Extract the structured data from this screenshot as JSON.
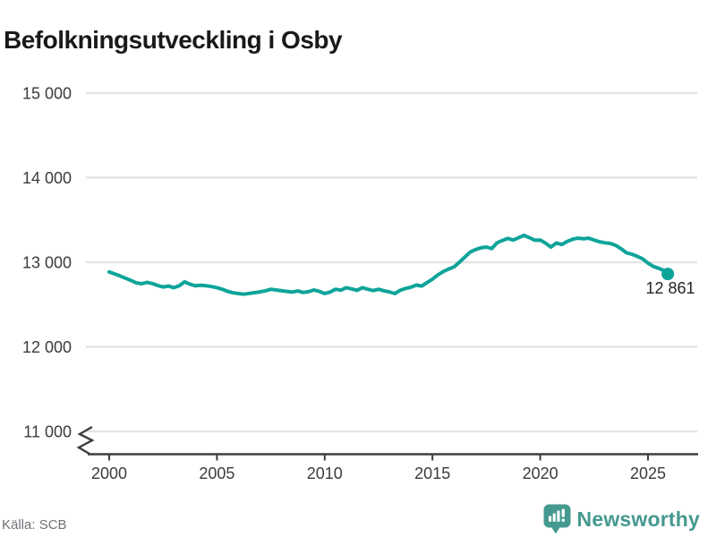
{
  "title": "Befolkningsutveckling i Osby",
  "annotation": {
    "last_value_label": "12 861"
  },
  "footer": {
    "source": "Källa: SCB",
    "brand": "Newsworthy"
  },
  "colors": {
    "line": "#0ea49a",
    "grid": "#e4e4e4",
    "axis": "#3e3e3e",
    "tick_text": "#3b3b3b",
    "title_text": "#191919",
    "source_text": "#6e7176",
    "brand_teal": "#45998f"
  },
  "chart_data": {
    "type": "line",
    "title": "Befolkningsutveckling i Osby",
    "source": "Källa: SCB",
    "grid": "horizontal",
    "legend": "none",
    "ylim": [
      11000,
      15000
    ],
    "y_axis_break": true,
    "yticks": [
      {
        "value": 15000,
        "label": "15 000"
      },
      {
        "value": 14000,
        "label": "14 000"
      },
      {
        "value": 13000,
        "label": "13 000"
      },
      {
        "value": 12000,
        "label": "12 000"
      },
      {
        "value": 11000,
        "label": "11 000"
      }
    ],
    "xticks": [
      {
        "value": 2000,
        "label": "2000"
      },
      {
        "value": 2005,
        "label": "2005"
      },
      {
        "value": 2010,
        "label": "2010"
      },
      {
        "value": 2015,
        "label": "2015"
      },
      {
        "value": 2020,
        "label": "2020"
      },
      {
        "value": 2025,
        "label": "2025"
      }
    ],
    "last_point": {
      "x": 2025.92,
      "value": 12861,
      "label": "12 861"
    },
    "points": [
      [
        2000.0,
        12885
      ],
      [
        2000.25,
        12862
      ],
      [
        2000.5,
        12838
      ],
      [
        2000.75,
        12812
      ],
      [
        2001.0,
        12785
      ],
      [
        2001.25,
        12758
      ],
      [
        2001.5,
        12745
      ],
      [
        2001.75,
        12762
      ],
      [
        2002.0,
        12748
      ],
      [
        2002.25,
        12725
      ],
      [
        2002.5,
        12708
      ],
      [
        2002.75,
        12718
      ],
      [
        2003.0,
        12700
      ],
      [
        2003.25,
        12722
      ],
      [
        2003.5,
        12768
      ],
      [
        2003.75,
        12740
      ],
      [
        2004.0,
        12722
      ],
      [
        2004.25,
        12728
      ],
      [
        2004.5,
        12722
      ],
      [
        2004.75,
        12712
      ],
      [
        2005.0,
        12700
      ],
      [
        2005.25,
        12680
      ],
      [
        2005.5,
        12655
      ],
      [
        2005.75,
        12638
      ],
      [
        2006.0,
        12630
      ],
      [
        2006.25,
        12622
      ],
      [
        2006.5,
        12632
      ],
      [
        2006.75,
        12640
      ],
      [
        2007.0,
        12650
      ],
      [
        2007.25,
        12662
      ],
      [
        2007.5,
        12680
      ],
      [
        2007.75,
        12672
      ],
      [
        2008.0,
        12662
      ],
      [
        2008.25,
        12655
      ],
      [
        2008.5,
        12648
      ],
      [
        2008.75,
        12660
      ],
      [
        2009.0,
        12642
      ],
      [
        2009.25,
        12652
      ],
      [
        2009.5,
        12672
      ],
      [
        2009.75,
        12655
      ],
      [
        2010.0,
        12630
      ],
      [
        2010.25,
        12648
      ],
      [
        2010.5,
        12680
      ],
      [
        2010.75,
        12670
      ],
      [
        2011.0,
        12700
      ],
      [
        2011.25,
        12685
      ],
      [
        2011.5,
        12668
      ],
      [
        2011.75,
        12700
      ],
      [
        2012.0,
        12680
      ],
      [
        2012.25,
        12665
      ],
      [
        2012.5,
        12680
      ],
      [
        2012.75,
        12662
      ],
      [
        2013.0,
        12650
      ],
      [
        2013.25,
        12630
      ],
      [
        2013.5,
        12668
      ],
      [
        2013.75,
        12690
      ],
      [
        2014.0,
        12705
      ],
      [
        2014.25,
        12730
      ],
      [
        2014.5,
        12718
      ],
      [
        2014.75,
        12760
      ],
      [
        2015.0,
        12800
      ],
      [
        2015.25,
        12850
      ],
      [
        2015.5,
        12890
      ],
      [
        2015.75,
        12920
      ],
      [
        2016.0,
        12945
      ],
      [
        2016.25,
        13000
      ],
      [
        2016.5,
        13060
      ],
      [
        2016.75,
        13120
      ],
      [
        2017.0,
        13150
      ],
      [
        2017.25,
        13170
      ],
      [
        2017.5,
        13180
      ],
      [
        2017.75,
        13162
      ],
      [
        2018.0,
        13230
      ],
      [
        2018.25,
        13258
      ],
      [
        2018.5,
        13282
      ],
      [
        2018.75,
        13262
      ],
      [
        2019.0,
        13290
      ],
      [
        2019.25,
        13318
      ],
      [
        2019.5,
        13290
      ],
      [
        2019.75,
        13260
      ],
      [
        2020.0,
        13262
      ],
      [
        2020.25,
        13225
      ],
      [
        2020.5,
        13180
      ],
      [
        2020.75,
        13228
      ],
      [
        2021.0,
        13210
      ],
      [
        2021.25,
        13245
      ],
      [
        2021.5,
        13272
      ],
      [
        2021.75,
        13285
      ],
      [
        2022.0,
        13278
      ],
      [
        2022.25,
        13285
      ],
      [
        2022.5,
        13262
      ],
      [
        2022.75,
        13242
      ],
      [
        2023.0,
        13230
      ],
      [
        2023.25,
        13222
      ],
      [
        2023.5,
        13200
      ],
      [
        2023.75,
        13160
      ],
      [
        2024.0,
        13112
      ],
      [
        2024.25,
        13095
      ],
      [
        2024.5,
        13070
      ],
      [
        2024.75,
        13040
      ],
      [
        2025.0,
        12990
      ],
      [
        2025.25,
        12950
      ],
      [
        2025.5,
        12928
      ],
      [
        2025.75,
        12900
      ],
      [
        2025.92,
        12861
      ]
    ]
  }
}
